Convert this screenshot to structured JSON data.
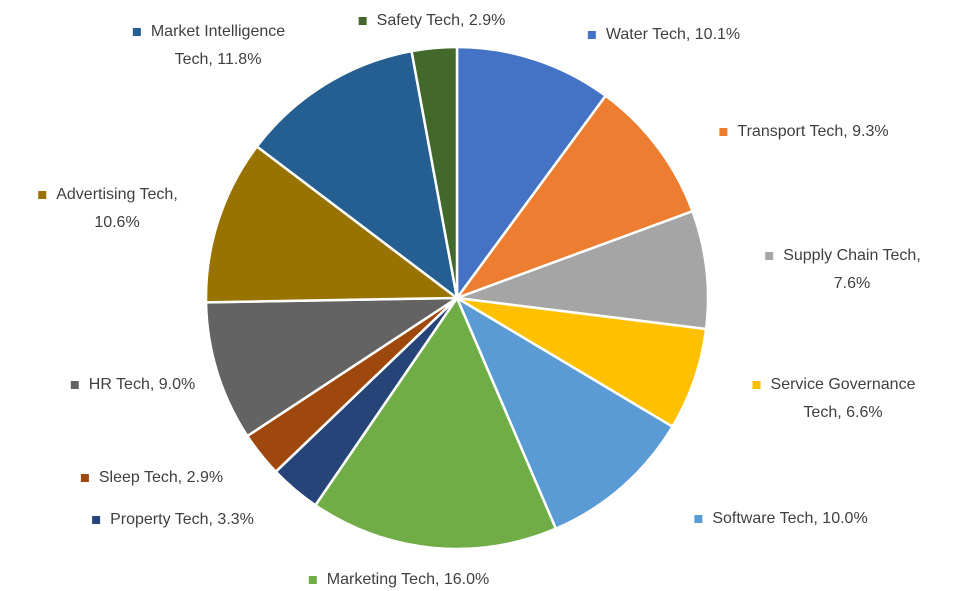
{
  "chart_data": {
    "type": "pie",
    "categories": [
      "Water Tech, 10.1%",
      "Transport Tech, 9.3%",
      "Supply Chain Tech, 7.6%",
      "Service Governance Tech, 6.6%",
      "Software Tech, 10.0%",
      "Marketing Tech, 16.0%",
      "Property Tech, 3.3%",
      "Sleep Tech, 2.9%",
      "HR Tech, 9.0%",
      "Advertising Tech, 10.6%",
      "Market Intelligence Tech, 11.8%",
      "Safety Tech, 2.9%"
    ],
    "values": [
      10.1,
      9.3,
      7.6,
      6.6,
      10.0,
      16.0,
      3.3,
      2.9,
      9.0,
      10.6,
      11.8,
      2.9
    ],
    "colors": [
      "#4472c4",
      "#ed7d31",
      "#a5a5a5",
      "#ffc000",
      "#5b9bd5",
      "#70ad47",
      "#264478",
      "#9e480e",
      "#636363",
      "#997300",
      "#255e91",
      "#43682b"
    ]
  }
}
